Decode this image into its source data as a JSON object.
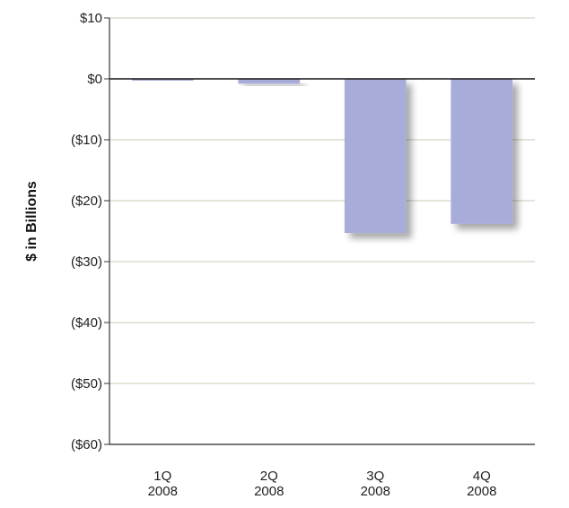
{
  "chart_data": {
    "type": "bar",
    "title": "",
    "xlabel": "",
    "ylabel": "$ in Billions",
    "categories": [
      [
        "1Q",
        "2008"
      ],
      [
        "2Q",
        "2008"
      ],
      [
        "3Q",
        "2008"
      ],
      [
        "4Q",
        "2008"
      ]
    ],
    "values": [
      -0.3,
      -0.8,
      -25.3,
      -23.8
    ],
    "ylim": [
      -60,
      10
    ],
    "yticks": [
      10,
      0,
      -10,
      -20,
      -30,
      -40,
      -50,
      -60
    ],
    "ytick_labels": [
      "$10",
      "$0",
      "($10)",
      "($20)",
      "($30)",
      "($40)",
      "($50)",
      "($60)"
    ],
    "grid": true,
    "colors": {
      "bar": "#a8acd9",
      "shadow": "#c8c8c8",
      "grid": "#dcdccf",
      "axis": "#333333",
      "zero_line": "#111111"
    }
  }
}
